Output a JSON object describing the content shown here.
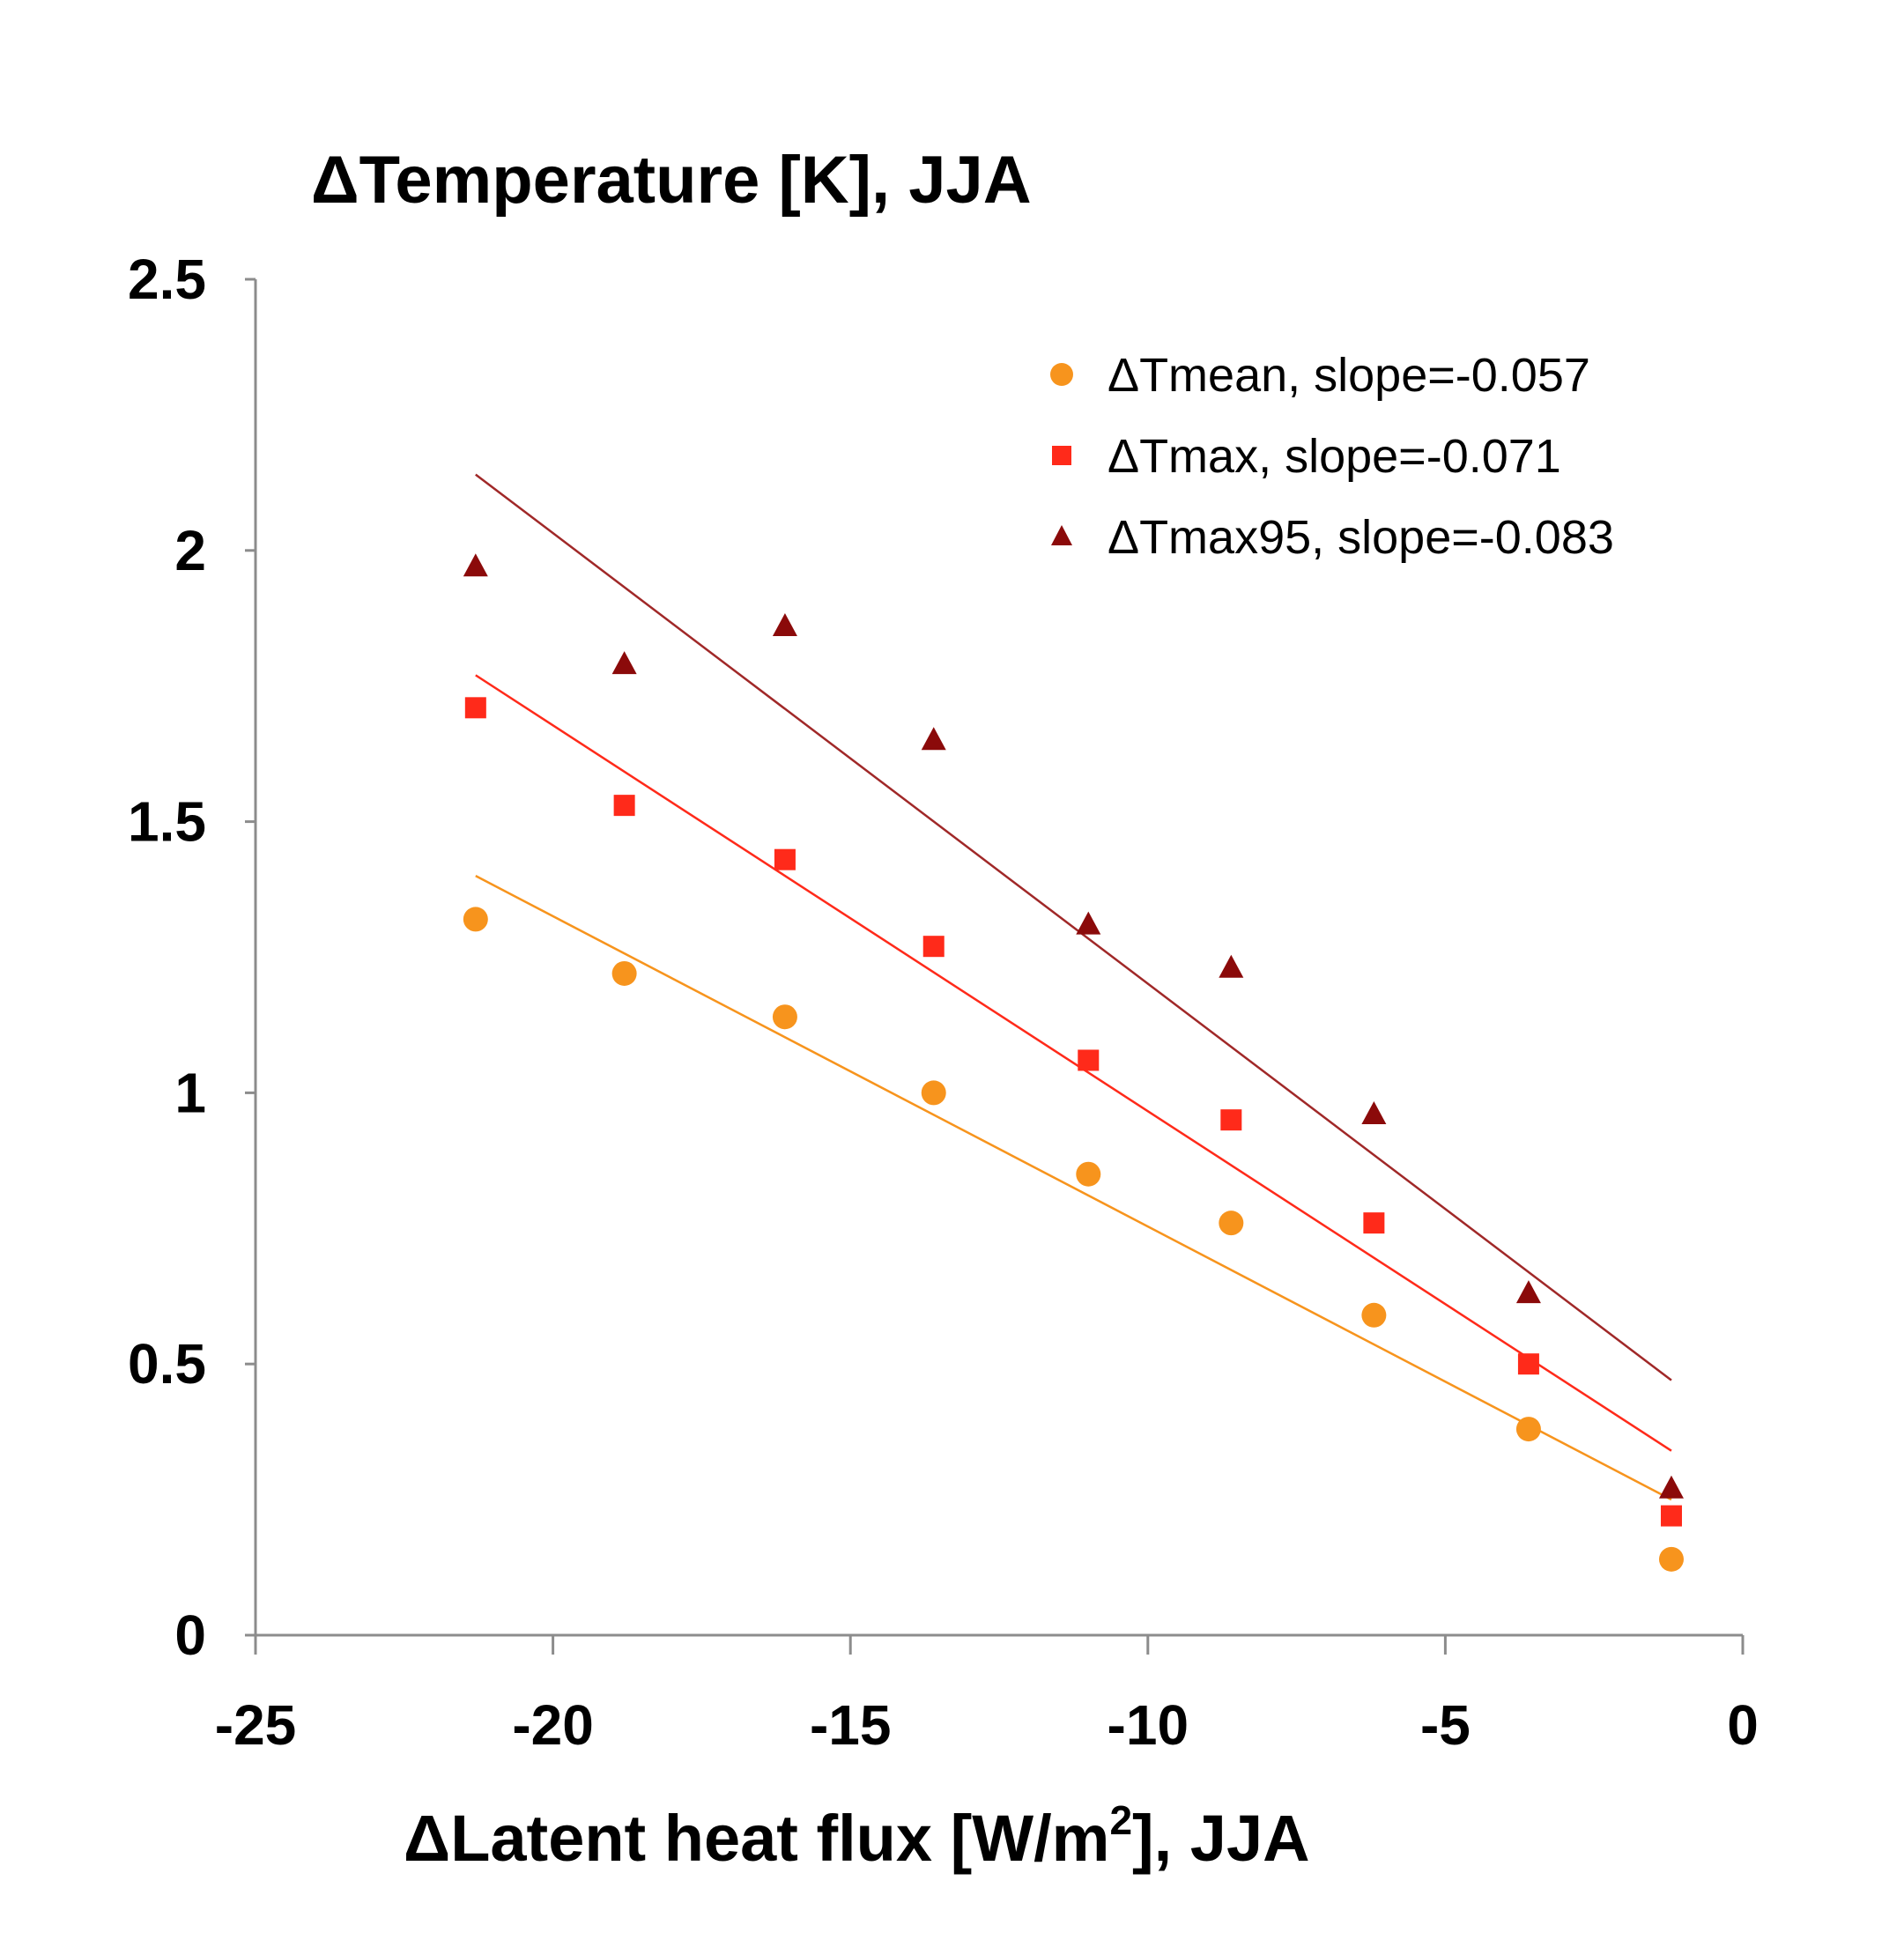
{
  "chart_data": {
    "type": "scatter",
    "title": "ΔTemperature [K], JJA",
    "xlabel_main": "ΔLatent heat flux [W/m",
    "xlabel_sup": "2",
    "xlabel_tail": "], JJA",
    "ylabel": "",
    "xlim": [
      -25,
      0
    ],
    "ylim": [
      0,
      2.5
    ],
    "xticks": [
      -25,
      -20,
      -15,
      -10,
      -5,
      0
    ],
    "xtick_labels": [
      "-25",
      "-20",
      "-15",
      "-10",
      "-5",
      "0"
    ],
    "yticks": [
      0,
      0.5,
      1,
      1.5,
      2,
      2.5
    ],
    "ytick_labels": [
      "0",
      "0.5",
      "1",
      "1.5",
      "2",
      "2.5"
    ],
    "legend_position": "top-right",
    "grid": false,
    "x": [
      -21.3,
      -18.8,
      -16.1,
      -13.6,
      -11.0,
      -8.6,
      -6.2,
      -3.6,
      -1.2
    ],
    "series": [
      {
        "name": "ΔTmean, slope=-0.057",
        "marker": "circle",
        "color": "#F7941D",
        "values": [
          1.32,
          1.22,
          1.14,
          1.0,
          0.85,
          0.76,
          0.59,
          0.38,
          0.14
        ],
        "fit_line": {
          "x": [
            -21.3,
            -1.2
          ],
          "y": [
            1.4,
            0.25
          ]
        }
      },
      {
        "name": "ΔTmax, slope=-0.071",
        "marker": "square",
        "color": "#FF2A1A",
        "values": [
          1.71,
          1.53,
          1.43,
          1.27,
          1.06,
          0.95,
          0.76,
          0.5,
          0.22
        ],
        "fit_line": {
          "x": [
            -21.3,
            -1.2
          ],
          "y": [
            1.77,
            0.34
          ]
        }
      },
      {
        "name": "ΔTmax95, slope=-0.083",
        "marker": "triangle",
        "color": "#8B0A0A",
        "values": [
          1.97,
          1.79,
          1.86,
          1.65,
          1.31,
          1.23,
          0.96,
          0.63,
          0.27
        ],
        "fit_line": {
          "x": [
            -21.3,
            -1.2
          ],
          "y": [
            2.14,
            0.47
          ]
        },
        "fit_color": "#A02828"
      }
    ]
  }
}
